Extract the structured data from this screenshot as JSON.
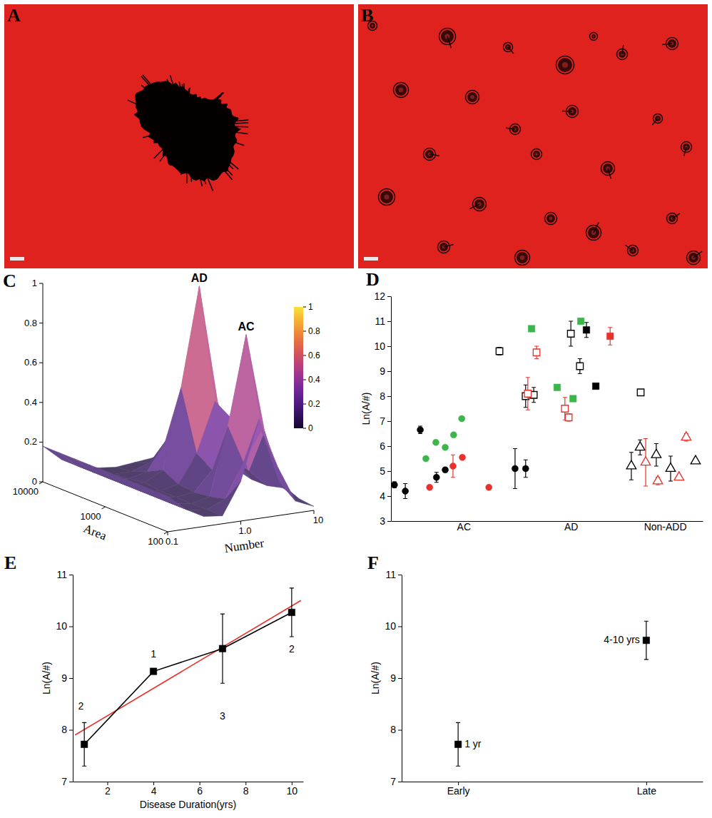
{
  "images": [
    {
      "panel": "A"
    },
    {
      "panel": "B"
    }
  ],
  "chart_data": [
    {
      "panel": "C",
      "type": "surface",
      "x_label": "Number",
      "y_label": "Area",
      "log": true,
      "x": [
        0.1,
        0.178,
        0.316,
        0.562,
        1,
        1.778,
        3.162,
        5.623,
        10
      ],
      "y": [
        100,
        178,
        316,
        562,
        1000,
        1778,
        3162,
        5623,
        10000
      ],
      "z": [
        [
          0.18,
          0.1,
          0.05,
          0.04,
          0.2,
          0.5,
          0.25,
          0.06,
          0.02
        ],
        [
          0.18,
          0.1,
          0.05,
          0.04,
          0.08,
          0.25,
          0.4,
          0.12,
          0.03
        ],
        [
          0.18,
          0.1,
          0.05,
          0.04,
          0.06,
          0.4,
          0.85,
          0.35,
          0.05
        ],
        [
          0.18,
          0.1,
          0.05,
          0.04,
          0.05,
          0.15,
          0.4,
          0.12,
          0.03
        ],
        [
          0.18,
          0.1,
          0.05,
          0.04,
          0.06,
          0.2,
          0.45,
          0.15,
          0.03
        ],
        [
          0.18,
          0.1,
          0.05,
          0.05,
          0.1,
          0.5,
          1.0,
          0.4,
          0.05
        ],
        [
          0.18,
          0.1,
          0.05,
          0.04,
          0.06,
          0.2,
          0.45,
          0.15,
          0.03
        ],
        [
          0.18,
          0.1,
          0.05,
          0.03,
          0.03,
          0.06,
          0.1,
          0.05,
          0.02
        ],
        [
          0.18,
          0.1,
          0.05,
          0.03,
          0.02,
          0.03,
          0.04,
          0.02,
          0.01
        ]
      ],
      "xlim": [
        0.1,
        10
      ],
      "xticks": [
        0.1,
        {
          "value": 1,
          "label": "1.0"
        },
        10
      ],
      "ylim": [
        100,
        10000
      ],
      "yticks": [
        100,
        1000,
        10000
      ],
      "zlim": [
        0,
        1
      ],
      "zticks": [
        0,
        0.2,
        0.4,
        0.6,
        0.8,
        1
      ],
      "colorbar": {
        "range": [
          0,
          1
        ],
        "ticks": [
          0,
          0.2,
          0.4,
          0.6,
          0.8,
          1
        ]
      },
      "annotations": [
        {
          "text": "AD",
          "x": 3.162,
          "y": 1778,
          "z": 1
        },
        {
          "text": "AC",
          "x": 3.162,
          "y": 316,
          "z": 0.85
        }
      ]
    },
    {
      "panel": "D",
      "type": "scatter",
      "y_label": "Ln(A/#)",
      "xlim": [
        0,
        100
      ],
      "xticks": [
        {
          "value": 23.3,
          "label": "AC"
        },
        {
          "value": 57.7,
          "label": "AD"
        },
        {
          "value": 87.9,
          "label": "Non-ADD"
        }
      ],
      "ylim": [
        3,
        12
      ],
      "yticks": [
        3,
        4,
        5,
        6,
        7,
        8,
        9,
        10,
        11,
        12
      ],
      "series": [
        {
          "color": "#000000",
          "marker": "circle",
          "x": [
            1.1,
            4.6,
            9.4,
            14.6,
            17.4,
            39.8,
            43.2
          ],
          "values": [
            4.45,
            4.2,
            6.65,
            4.75,
            5.05,
            5.1,
            5.1
          ],
          "errors": [
            0.12,
            0.3,
            0.15,
            0.2,
            null,
            0.8,
            0.35
          ]
        },
        {
          "color": "#3cb54a",
          "marker": "circle",
          "x": [
            11.2,
            14.4,
            17.4,
            20.1,
            22.7
          ],
          "values": [
            5.5,
            6.15,
            5.95,
            6.45,
            7.1
          ]
        },
        {
          "color": "#e8312a",
          "marker": "circle",
          "x": [
            12.4,
            19.9,
            22.9,
            31.4
          ],
          "values": [
            4.35,
            5.2,
            5.55,
            4.35
          ],
          "errors": [
            null,
            0.45,
            null,
            null
          ]
        },
        {
          "color": "#000000",
          "marker": "open-square",
          "x": [
            34.8,
            43.2,
            45.8,
            57.7,
            60.6,
            80.1
          ],
          "values": [
            9.8,
            8.0,
            8.05,
            10.5,
            9.2,
            8.15
          ],
          "errors": [
            0.15,
            0.45,
            0.3,
            0.5,
            0.3,
            0.1
          ]
        },
        {
          "color": "#000000",
          "marker": "square",
          "x": [
            62.7,
            65.7
          ],
          "values": [
            10.65,
            8.4
          ],
          "errors": [
            0.3,
            null
          ]
        },
        {
          "color": "#3cb54a",
          "marker": "square",
          "x": [
            45.1,
            53.3,
            58.4,
            60.9
          ],
          "values": [
            10.7,
            8.35,
            7.9,
            11.0
          ]
        },
        {
          "color": "#e8312a",
          "marker": "square",
          "x": [
            70.3
          ],
          "values": [
            10.4
          ],
          "errors": [
            0.35
          ]
        },
        {
          "color": "#e8312a",
          "marker": "open-square",
          "x": [
            43.9,
            46.7,
            55.8,
            57.0
          ],
          "values": [
            8.1,
            9.75,
            7.5,
            7.15
          ],
          "errors": [
            0.65,
            0.25,
            0.45,
            0.15
          ]
        },
        {
          "color": "#000000",
          "marker": "open-triangle",
          "x": [
            77.1,
            79.9,
            85.1,
            89.7,
            97.7
          ],
          "values": [
            5.2,
            5.95,
            5.65,
            5.1,
            5.4
          ],
          "errors": [
            0.55,
            0.3,
            0.45,
            0.5,
            0.1
          ]
        },
        {
          "color": "#e8312a",
          "marker": "open-triangle",
          "x": [
            81.7,
            85.6,
            92.4,
            94.7
          ],
          "values": [
            5.35,
            4.6,
            4.75,
            6.35
          ],
          "errors": [
            0.95,
            0.15,
            0.1,
            0.15
          ]
        }
      ]
    },
    {
      "panel": "E",
      "type": "line",
      "x_label": "Disease Duration(yrs)",
      "y_label": "Ln(A/#)",
      "xlim": [
        0.5,
        10.5
      ],
      "xticks": [
        2,
        4,
        6,
        8,
        10
      ],
      "ylim": [
        7,
        11
      ],
      "yticks": [
        7,
        8,
        9,
        10,
        11
      ],
      "series": [
        {
          "color": "#000000",
          "marker": "square",
          "x": [
            1,
            4,
            7,
            10
          ],
          "values": [
            7.72,
            9.13,
            9.57,
            10.27
          ],
          "errors": [
            0.42,
            null,
            0.67,
            0.47
          ]
        },
        {
          "color": "#e8312a",
          "marker": "none",
          "x": [
            0.6,
            10.4
          ],
          "values": [
            7.9,
            10.5
          ]
        }
      ],
      "annotations": [
        {
          "text": "2",
          "x": 0.85,
          "y": 8.45
        },
        {
          "text": "1",
          "x": 4,
          "y": 9.45
        },
        {
          "text": "3",
          "x": 7,
          "y": 8.25
        },
        {
          "text": "2",
          "x": 10,
          "y": 9.55
        }
      ]
    },
    {
      "panel": "F",
      "type": "scatter",
      "y_label": "Ln(A/#)",
      "categories": [
        "Early",
        "Late"
      ],
      "values": [
        7.72,
        9.73
      ],
      "errors": [
        0.42,
        0.37
      ],
      "color": "#000000",
      "marker": "square",
      "ylim": [
        7,
        11
      ],
      "yticks": [
        7,
        8,
        9,
        10,
        11
      ],
      "annotations": [
        {
          "text": "1 yr",
          "x": "Early",
          "y": 7.72
        },
        {
          "text": "4-10 yrs",
          "x": "Late",
          "y": 9.73
        }
      ]
    }
  ]
}
